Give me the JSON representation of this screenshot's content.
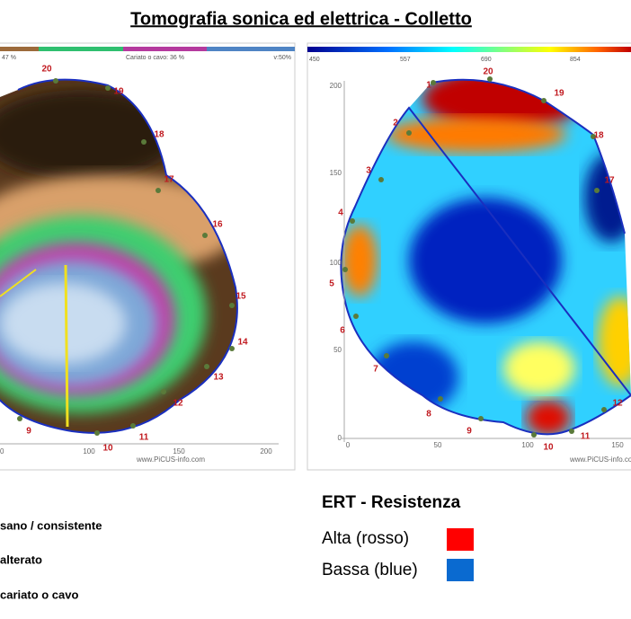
{
  "title": "Tomografia sonica ed elettrica - Colletto",
  "sonic": {
    "scale_labels": [
      "47 %",
      "Cariato o cavo: 36 %",
      "v:50%"
    ],
    "nodes": [
      "20",
      "19",
      "18",
      "17",
      "16",
      "15",
      "14",
      "13",
      "12",
      "11",
      "10",
      "9"
    ],
    "x_axis": [
      "0",
      "100",
      "150",
      "200"
    ],
    "watermark": "www.PiCUS-info.com"
  },
  "electric": {
    "scale_labels": [
      "450",
      "557",
      "690",
      "854"
    ],
    "y_axis": [
      "200",
      "150",
      "100",
      "50",
      "0"
    ],
    "x_axis": [
      "0",
      "50",
      "100",
      "150"
    ],
    "nodes": [
      "1",
      "20",
      "19",
      "2",
      "18",
      "3",
      "17",
      "4",
      "5",
      "6",
      "7",
      "8",
      "9",
      "10",
      "11",
      "12"
    ],
    "watermark": "www.PiCUS-info.com"
  },
  "sonic_legend": [
    "sano / consistente",
    "alterato",
    "cariato o cavo"
  ],
  "ert_legend": {
    "title": "ERT - Resistenza",
    "items": [
      "Alta (rosso)",
      "Bassa (blue)"
    ]
  }
}
